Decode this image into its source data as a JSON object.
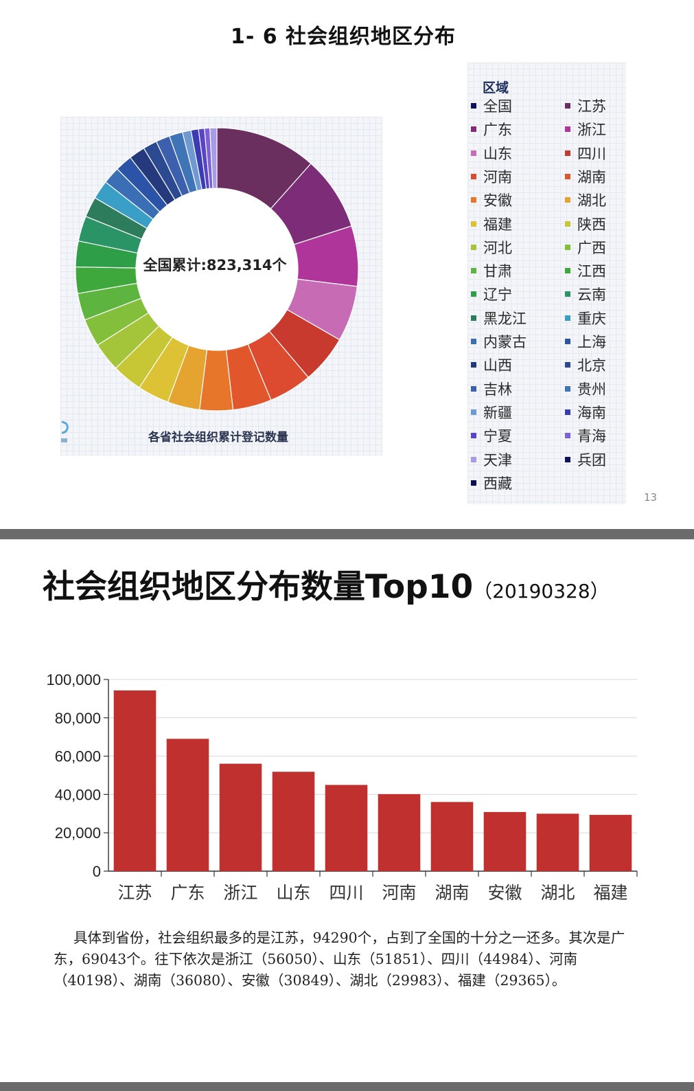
{
  "slide1": {
    "title": "1- 6   社会组织地区分布",
    "donut_center_label": "全国累计:823,314个",
    "donut_caption": "各省社会组织累计登记数量",
    "legend_title": "区域",
    "page_number": "13"
  },
  "slide2": {
    "title": "社会组织地区分布数量Top10",
    "title_date": "（20190328）",
    "description": "具体到省份，社会组织最多的是江苏，94290个，占到了全国的十分之一还多。其次是广东，69043个。往下依次是浙江（56050）、山东（51851）、四川（44984）、河南（40198）、湖南（36080）、安徽（30849）、湖北（29983）、福建（29365）。"
  },
  "chart_data": [
    {
      "type": "pie",
      "variant": "donut",
      "total_label": "全国累计:823,314个",
      "caption": "各省社会组织累计登记数量",
      "legend_title": "区域",
      "legend_placement": "right",
      "legend": [
        {
          "name": "全国",
          "color": "#10135c"
        },
        {
          "name": "江苏",
          "color": "#6b2f5f"
        },
        {
          "name": "广东",
          "color": "#7d2d78"
        },
        {
          "name": "浙江",
          "color": "#b0359a"
        },
        {
          "name": "山东",
          "color": "#c86bb5"
        },
        {
          "name": "四川",
          "color": "#c83a2e"
        },
        {
          "name": "河南",
          "color": "#dc4a30"
        },
        {
          "name": "湖南",
          "color": "#e2562b"
        },
        {
          "name": "安徽",
          "color": "#e7762b"
        },
        {
          "name": "湖北",
          "color": "#e4a42f"
        },
        {
          "name": "福建",
          "color": "#ddc235"
        },
        {
          "name": "陕西",
          "color": "#c7c634"
        },
        {
          "name": "河北",
          "color": "#a4c43a"
        },
        {
          "name": "广西",
          "color": "#84bf3c"
        },
        {
          "name": "甘肃",
          "color": "#5db540"
        },
        {
          "name": "江西",
          "color": "#3ea83d"
        },
        {
          "name": "辽宁",
          "color": "#2e9e48"
        },
        {
          "name": "云南",
          "color": "#2b9467"
        },
        {
          "name": "黑龙江",
          "color": "#2d7c5b"
        },
        {
          "name": "重庆",
          "color": "#3a9fc7"
        },
        {
          "name": "内蒙古",
          "color": "#3b6fb5"
        },
        {
          "name": "上海",
          "color": "#2b53a8"
        },
        {
          "name": "山西",
          "color": "#253a7d"
        },
        {
          "name": "北京",
          "color": "#2c4a92"
        },
        {
          "name": "吉林",
          "color": "#3c5fae"
        },
        {
          "name": "贵州",
          "color": "#3f74b6"
        },
        {
          "name": "新疆",
          "color": "#6e9ad1"
        },
        {
          "name": "海南",
          "color": "#3b3bb4"
        },
        {
          "name": "宁夏",
          "color": "#5a43c6"
        },
        {
          "name": "青海",
          "color": "#7b62d6"
        },
        {
          "name": "天津",
          "color": "#a79ae6"
        },
        {
          "name": "兵团",
          "color": "#0b1060"
        },
        {
          "name": "西藏",
          "color": "#0a0f55"
        }
      ],
      "slices": [
        {
          "name": "江苏",
          "value": 94290,
          "color": "#6b2f5f"
        },
        {
          "name": "广东",
          "value": 69043,
          "color": "#7d2d78"
        },
        {
          "name": "浙江",
          "value": 56050,
          "color": "#b0359a"
        },
        {
          "name": "山东",
          "value": 51851,
          "color": "#c86bb5"
        },
        {
          "name": "四川",
          "value": 44984,
          "color": "#c83a2e"
        },
        {
          "name": "河南",
          "value": 40198,
          "color": "#dc4a30"
        },
        {
          "name": "湖南",
          "value": 36080,
          "color": "#e2562b"
        },
        {
          "name": "安徽",
          "value": 30849,
          "color": "#e7762b"
        },
        {
          "name": "湖北",
          "value": 29983,
          "color": "#e4a42f"
        },
        {
          "name": "福建",
          "value": 29365,
          "color": "#ddc235"
        },
        {
          "name": "陕西",
          "value": 28000,
          "color": "#c7c634"
        },
        {
          "name": "河北",
          "value": 27000,
          "color": "#a4c43a"
        },
        {
          "name": "广西",
          "value": 26000,
          "color": "#84bf3c"
        },
        {
          "name": "甘肃",
          "value": 25000,
          "color": "#5db540"
        },
        {
          "name": "江西",
          "value": 24500,
          "color": "#3ea83d"
        },
        {
          "name": "辽宁",
          "value": 24000,
          "color": "#2e9e48"
        },
        {
          "name": "云南",
          "value": 23500,
          "color": "#2b9467"
        },
        {
          "name": "黑龙江",
          "value": 19000,
          "color": "#2d7c5b"
        },
        {
          "name": "重庆",
          "value": 17500,
          "color": "#3a9fc7"
        },
        {
          "name": "内蒙古",
          "value": 16000,
          "color": "#3b6fb5"
        },
        {
          "name": "上海",
          "value": 16000,
          "color": "#2b53a8"
        },
        {
          "name": "山西",
          "value": 15000,
          "color": "#253a7d"
        },
        {
          "name": "北京",
          "value": 13000,
          "color": "#2c4a92"
        },
        {
          "name": "吉林",
          "value": 13000,
          "color": "#3c5fae"
        },
        {
          "name": "贵州",
          "value": 12500,
          "color": "#3f74b6"
        },
        {
          "name": "新疆",
          "value": 8000,
          "color": "#6e9ad1"
        },
        {
          "name": "海南",
          "value": 7000,
          "color": "#3b3bb4"
        },
        {
          "name": "宁夏",
          "value": 5500,
          "color": "#5a43c6"
        },
        {
          "name": "青海",
          "value": 5000,
          "color": "#7b62d6"
        },
        {
          "name": "天津",
          "value": 6500,
          "color": "#a79ae6"
        }
      ]
    },
    {
      "type": "bar",
      "title": "社会组织地区分布数量Top10",
      "categories": [
        "江苏",
        "广东",
        "浙江",
        "山东",
        "四川",
        "河南",
        "湖南",
        "安徽",
        "湖北",
        "福建"
      ],
      "values": [
        94290,
        69043,
        56050,
        51851,
        44984,
        40198,
        36080,
        30849,
        29983,
        29365
      ],
      "ylim": [
        0,
        100000
      ],
      "yticks": [
        "0",
        "20,000",
        "40,000",
        "60,000",
        "80,000",
        "100,000"
      ],
      "bar_color": "#c0302f",
      "grid": true
    }
  ]
}
